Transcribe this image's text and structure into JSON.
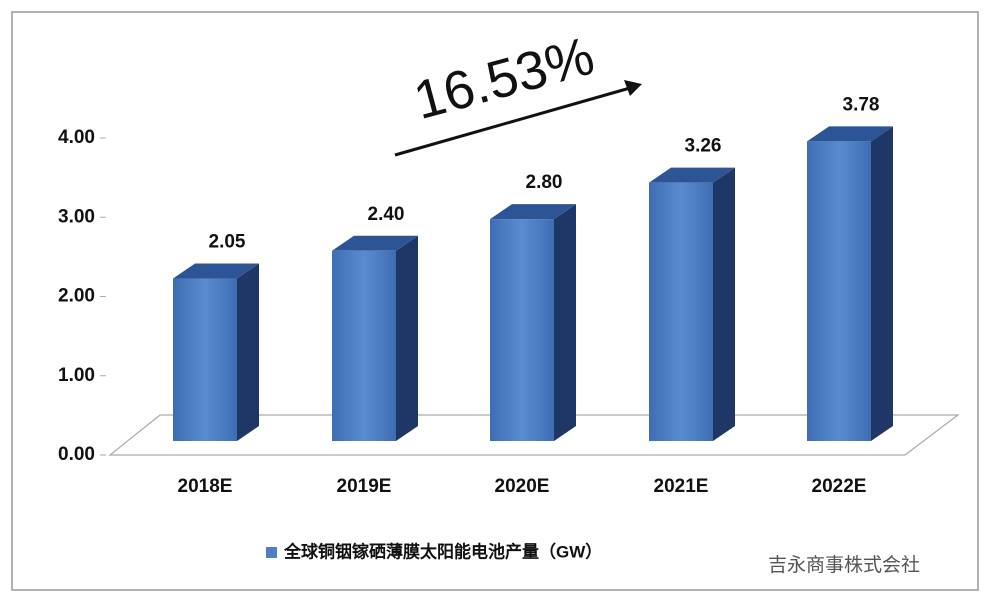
{
  "chart_data": {
    "type": "bar3d",
    "annotation": "16.53%",
    "categories": [
      "2018E",
      "2019E",
      "2020E",
      "2021E",
      "2022E"
    ],
    "series": [
      {
        "name": "全球铜铟镓硒薄膜太阳能电池产量（GW）",
        "color": "#4f7fc4",
        "values": [
          2.05,
          2.4,
          2.8,
          3.26,
          3.78
        ],
        "value_labels": [
          "2.05",
          "2.40",
          "2.80",
          "3.26",
          "3.78"
        ]
      }
    ],
    "ylim": [
      0,
      4
    ],
    "yticks": [
      {
        "value": 0,
        "label": "0.00"
      },
      {
        "value": 1,
        "label": "1.00"
      },
      {
        "value": 2,
        "label": "2.00"
      },
      {
        "value": 3,
        "label": "3.00"
      },
      {
        "value": 4,
        "label": "4.00"
      }
    ],
    "watermark": "吉永商事株式会社"
  }
}
